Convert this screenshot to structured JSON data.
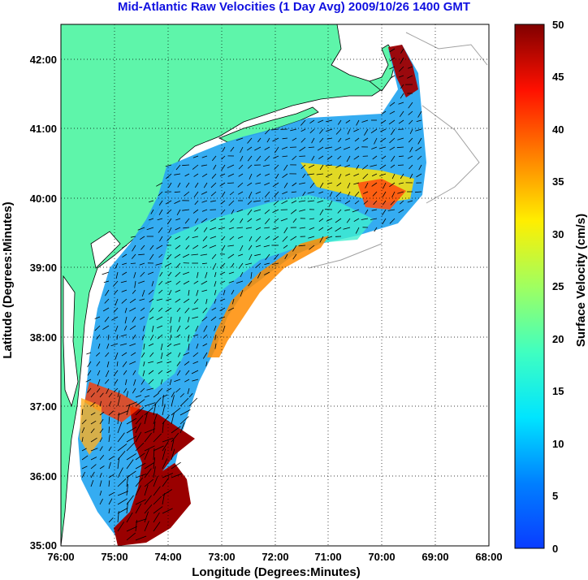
{
  "title": "Mid-Atlantic Raw Velocities (1 Day Avg) 2009/10/26 1400 GMT",
  "map": {
    "xlabel": "Longitude (Degrees:Minutes)",
    "ylabel": "Latitude (Degrees:Minutes)",
    "lon_ticks": [
      "76:00",
      "75:00",
      "74:00",
      "73:00",
      "72:00",
      "71:00",
      "70:00",
      "69:00",
      "68:00"
    ],
    "lat_ticks": [
      "42:00",
      "41:00",
      "40:00",
      "39:00",
      "38:00",
      "37:00",
      "36:00",
      "35:00"
    ],
    "lon_range": [
      -76,
      -68
    ],
    "lat_range": [
      35,
      42.5
    ],
    "land_color": "#5ef5aa",
    "grid": true
  },
  "colorbar": {
    "label": "Surface Velocity (cm/s)",
    "ticks": [
      "50",
      "45",
      "40",
      "35",
      "30",
      "25",
      "20",
      "15",
      "10",
      "5",
      "0"
    ],
    "range": [
      0,
      50
    ],
    "colormap": "jet"
  }
}
